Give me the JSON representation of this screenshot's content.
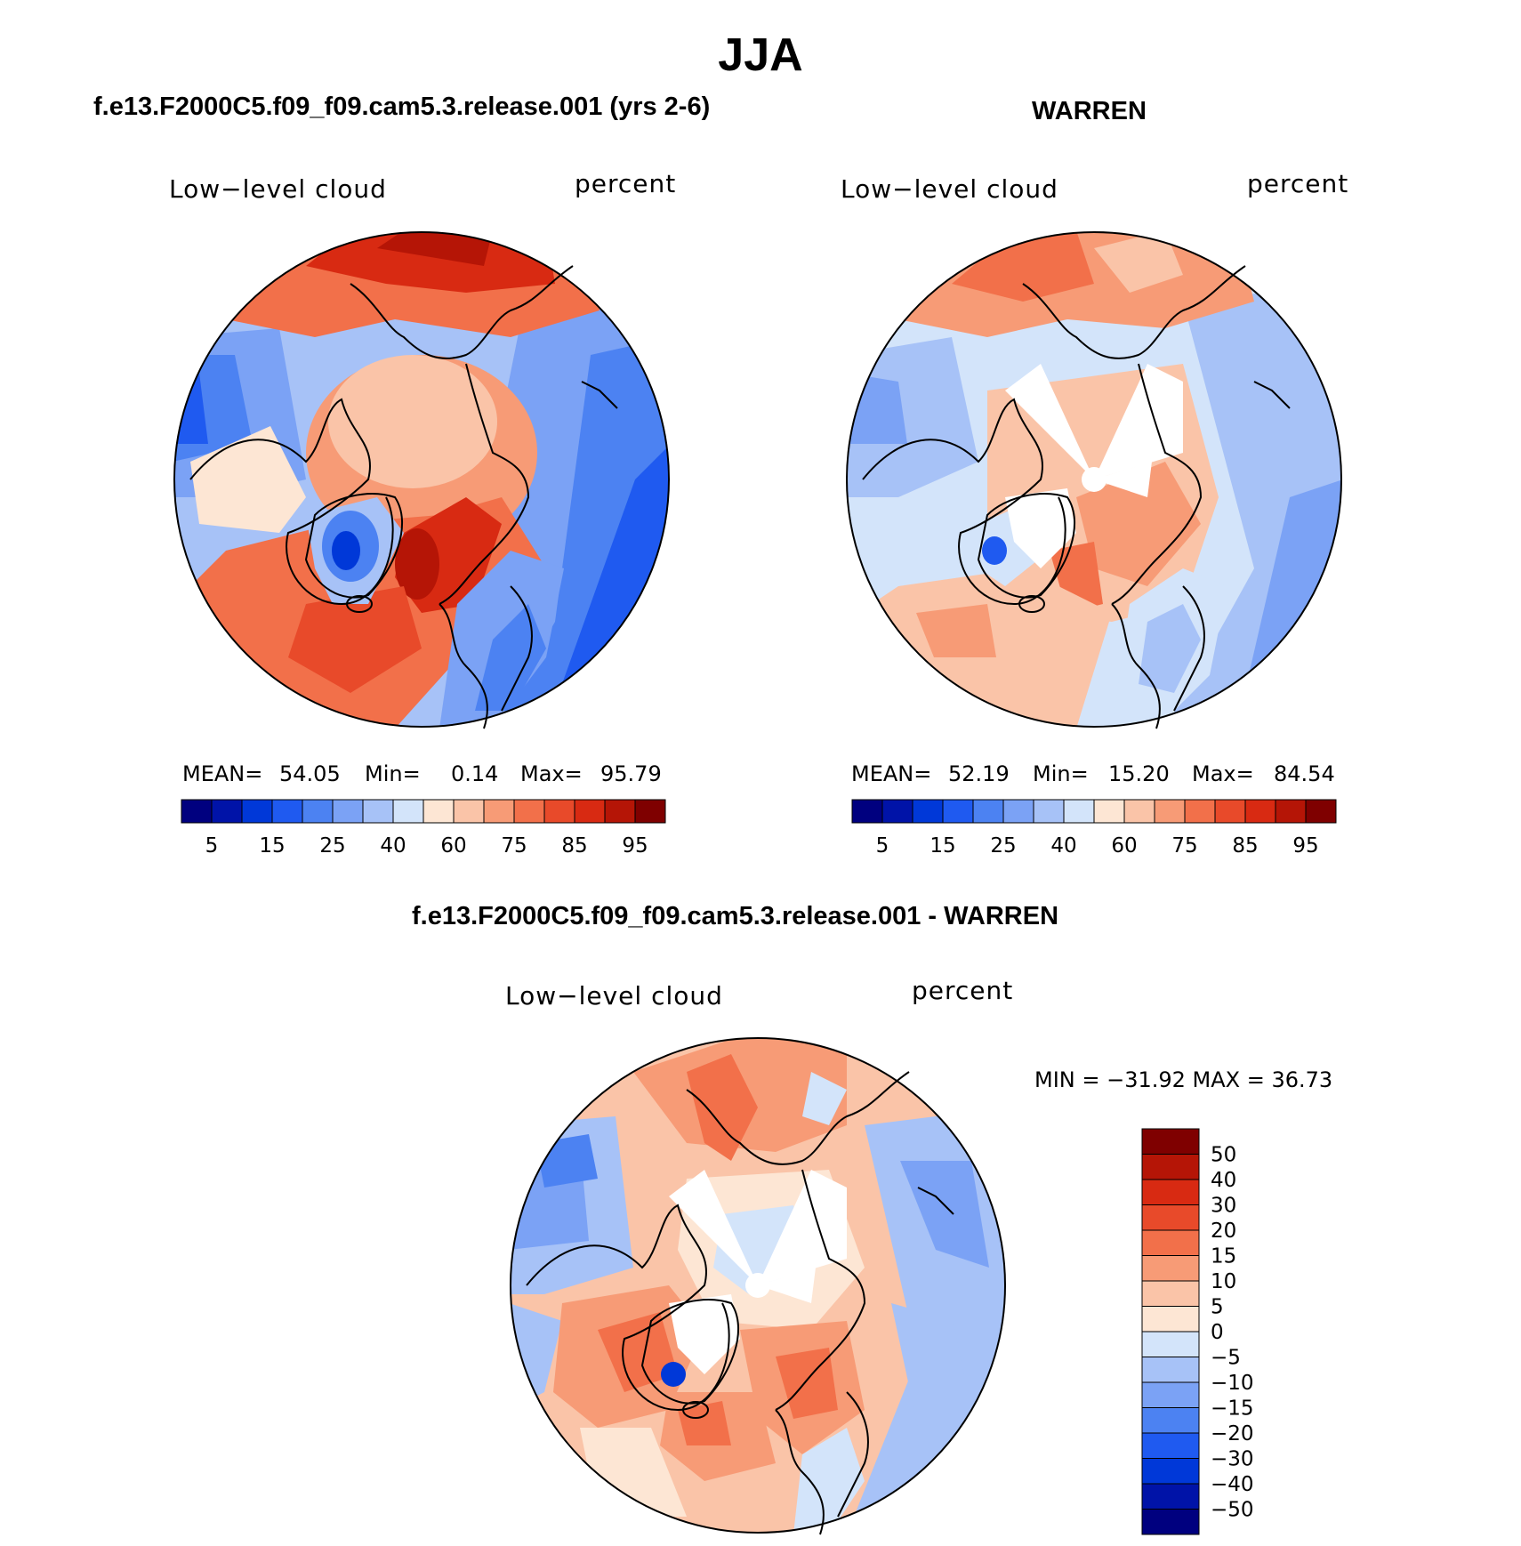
{
  "figure": {
    "season": "JJA",
    "colors": {
      "blues": [
        "#00007f",
        "#0013a8",
        "#0038d8",
        "#1f5af0",
        "#4c82f2",
        "#7ba2f5",
        "#a7c2f7",
        "#d3e4fa"
      ],
      "reds": [
        "#fde6d4",
        "#fac4a8",
        "#f79b76",
        "#f2704a",
        "#e84a2a",
        "#d82a12",
        "#b51506",
        "#7f0000"
      ]
    }
  },
  "panels": [
    {
      "id": "model",
      "title": "f.e13.F2000C5.f09_f09.cam5.3.release.001 (yrs 2-6)",
      "variable": "Low−level cloud",
      "units": "percent",
      "stats": {
        "mean_label": "MEAN=",
        "mean": "54.05",
        "min_label": "Min=",
        "min": "0.14",
        "max_label": "Max=",
        "max": "95.79"
      },
      "colorbar_ticks": [
        "5",
        "15",
        "25",
        "40",
        "60",
        "75",
        "85",
        "95"
      ]
    },
    {
      "id": "obs",
      "title": "WARREN",
      "variable": "Low−level cloud",
      "units": "percent",
      "stats": {
        "mean_label": "MEAN=",
        "mean": "52.19",
        "min_label": "Min=",
        "min": "15.20",
        "max_label": "Max=",
        "max": "84.54"
      },
      "colorbar_ticks": [
        "5",
        "15",
        "25",
        "40",
        "60",
        "75",
        "85",
        "95"
      ]
    },
    {
      "id": "diff",
      "title": "f.e13.F2000C5.f09_f09.cam5.3.release.001 - WARREN",
      "variable": "Low−level cloud",
      "units": "percent",
      "stats_text": "MIN = −31.92 MAX =   36.73",
      "colorbar_ticks": [
        "50",
        "40",
        "30",
        "20",
        "15",
        "10",
        "5",
        "0",
        "−5",
        "−10",
        "−15",
        "−20",
        "−30",
        "−40",
        "−50"
      ]
    }
  ]
}
